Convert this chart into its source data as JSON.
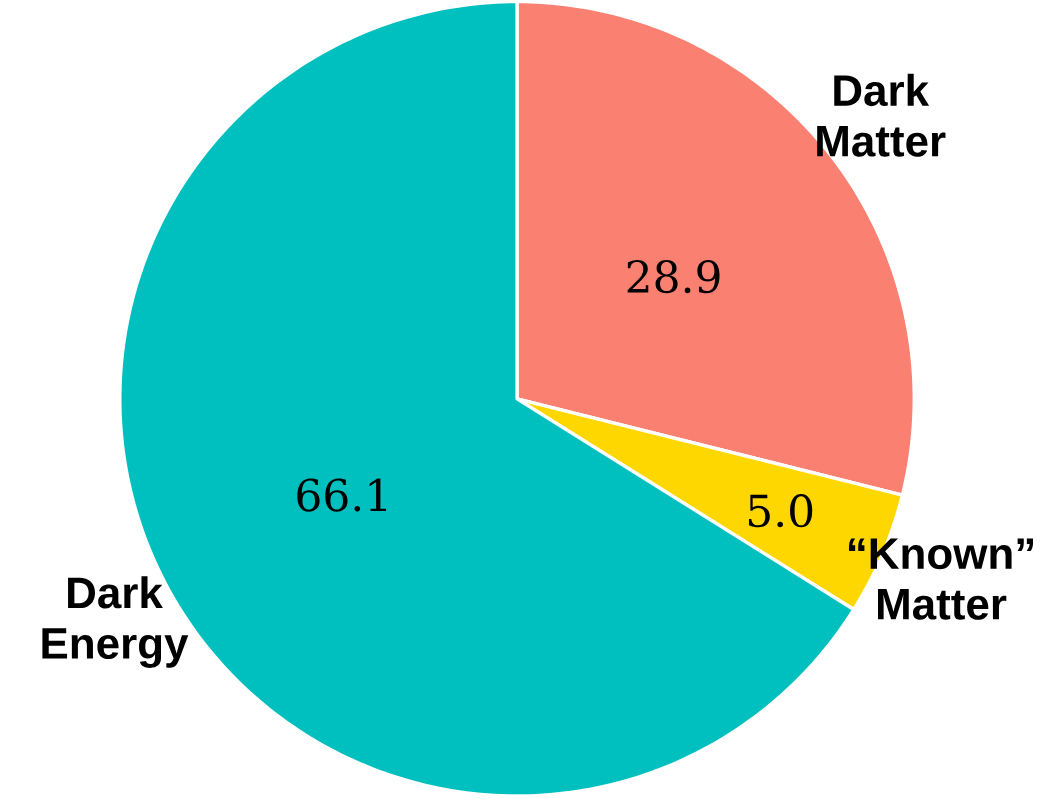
{
  "chart_data": {
    "type": "pie",
    "categories": [
      "Dark Matter",
      "“Known” Matter",
      "Dark Energy"
    ],
    "values": [
      28.9,
      5.0,
      66.1
    ],
    "colors": [
      "#fa8072",
      "#ffd700",
      "#00bfbf"
    ],
    "value_labels": [
      "28.9",
      "5.0",
      "66.1"
    ]
  }
}
